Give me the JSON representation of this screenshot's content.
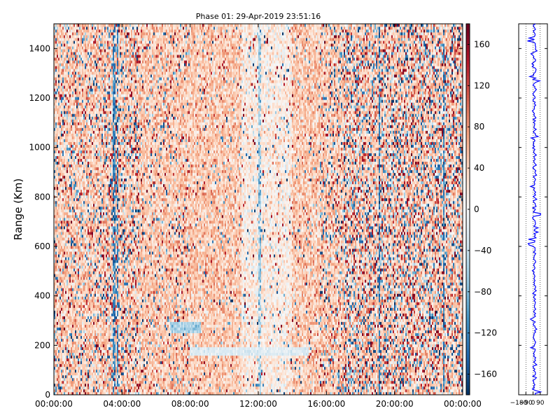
{
  "chart_data": [
    {
      "type": "heatmap",
      "title": "Phase 01: 29-Apr-2019 23:51:16",
      "xlabel": "",
      "ylabel": "Range (Km)",
      "x_range": [
        "00:00:00",
        "24:00:00"
      ],
      "x_tick_labels": [
        "00:00:00",
        "04:00:00",
        "08:00:00",
        "12:00:00",
        "16:00:00",
        "20:00:00",
        "00:00:00"
      ],
      "ylim": [
        0,
        1500
      ],
      "y_ticks": [
        0,
        200,
        400,
        600,
        800,
        1000,
        1200,
        1400
      ],
      "colorbar": {
        "colormap": "RdBu_r",
        "range": [
          -180,
          180
        ],
        "ticks": [
          160,
          120,
          80,
          40,
          0,
          -40,
          -80,
          -120,
          -160
        ]
      },
      "value_description": "Phase (degrees) noise field per time/range cell; values near 0 in the central period, widely scattered (noisy) near 00:00–05:00 and 16:00–24:00",
      "features": [
        {
          "label": "vertical streak",
          "time_hours": 12.1
        },
        {
          "label": "vertical streak",
          "time_hours": 3.5
        },
        {
          "label": "faint horizontal band",
          "range_km": 175,
          "time_hours": [
            8.0,
            15.0
          ]
        }
      ],
      "colors": {
        "low": "#053061",
        "mid": "#f7f7f7",
        "high": "#67001f"
      }
    },
    {
      "type": "line",
      "x_tick_labels": [
        "−180",
        "−90",
        "0",
        "90"
      ],
      "xlim": [
        -180,
        180
      ],
      "ylim": [
        0,
        1500
      ],
      "series_color": "#0000ff"
    }
  ]
}
